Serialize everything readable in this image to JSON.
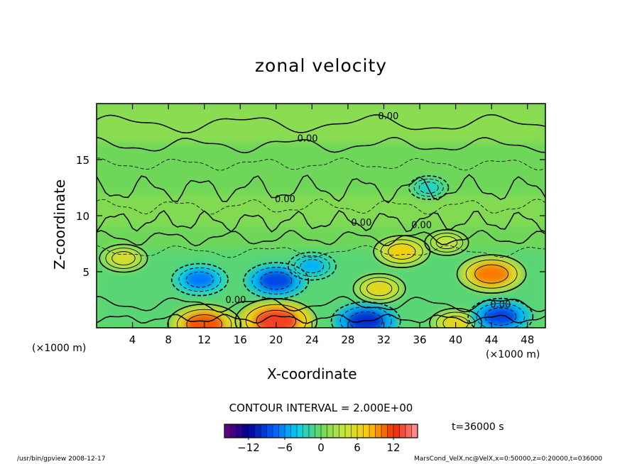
{
  "chart_data": {
    "type": "heatmap",
    "title": "zonal velocity",
    "xlabel": "X-coordinate",
    "ylabel": "Z-coordinate",
    "x_unit_label": "(×1000 m)",
    "x_unit_label_right": "(×1000 m)",
    "xlim": [
      0,
      50
    ],
    "ylim": [
      0,
      20
    ],
    "xticks": [
      4,
      8,
      12,
      16,
      20,
      24,
      28,
      32,
      36,
      40,
      44,
      48
    ],
    "yticks": [
      5,
      10,
      15
    ],
    "contour_interval": "CONTOUR INTERVAL = 2.000E+00",
    "contour_labels": [
      "0.00",
      "0.00",
      "0.00",
      "0.00",
      "0.00",
      "0.00",
      "0.00"
    ],
    "colorbar": {
      "min": -16,
      "max": 16,
      "ticks": [
        -12,
        -6,
        0,
        6,
        12
      ]
    },
    "time_label": "t=36000 s",
    "features": [
      {
        "x": 20,
        "y": 0.6,
        "value": 13
      },
      {
        "x": 12,
        "y": 0.3,
        "value": 11
      },
      {
        "x": 44,
        "y": 4.8,
        "value": 10
      },
      {
        "x": 34,
        "y": 6.8,
        "value": 7
      },
      {
        "x": 31.5,
        "y": 3.5,
        "value": 6
      },
      {
        "x": 40,
        "y": 0.4,
        "value": 6
      },
      {
        "x": 3,
        "y": 6.2,
        "value": 5
      },
      {
        "x": 39,
        "y": 7.6,
        "value": 4
      },
      {
        "x": 20,
        "y": 4.2,
        "value": -9
      },
      {
        "x": 11.5,
        "y": 4.3,
        "value": -7
      },
      {
        "x": 30,
        "y": 0.6,
        "value": -10
      },
      {
        "x": 45,
        "y": 1.0,
        "value": -9
      },
      {
        "x": 24,
        "y": 5.5,
        "value": -5
      },
      {
        "x": 37,
        "y": 12.5,
        "value": -3
      }
    ]
  },
  "footer": {
    "left": "/usr/bin/gpview   2008-12-17",
    "right": "MarsCond_VelX.nc@VelX,x=0:50000,z=0:20000,t=036000"
  }
}
